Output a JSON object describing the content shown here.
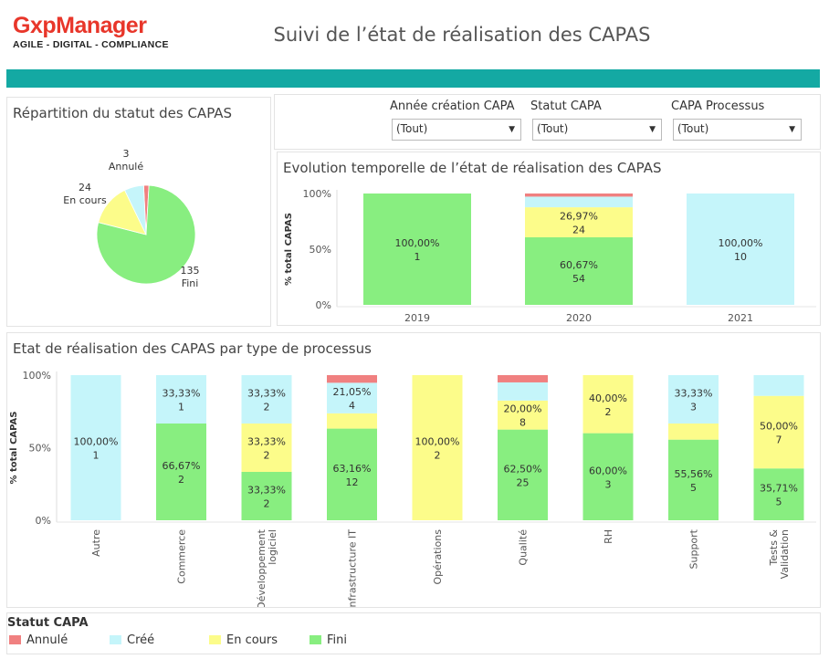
{
  "header": {
    "logo_main": "GxpManager",
    "logo_sub": "AGILE - DIGITAL - COMPLIANCE",
    "title": "Suivi de l’état de réalisation des CAPAS"
  },
  "colors": {
    "teal": "#14a9a3",
    "annule": "#f08080",
    "cree": "#c5f5fa",
    "en_cours": "#fcfc8a",
    "fini": "#88ee80"
  },
  "pie_panel": {
    "title": "Répartition du statut des CAPAS"
  },
  "filters": {
    "items": [
      {
        "label": "Année création CAPA",
        "value": "(Tout)"
      },
      {
        "label": "Statut CAPA",
        "value": "(Tout)"
      },
      {
        "label": "CAPA Processus",
        "value": "(Tout)"
      }
    ],
    "caret": "▼"
  },
  "evolution_panel": {
    "title": "Evolution temporelle de l’état de réalisation des CAPAS",
    "ylabel": "% total CAPAS"
  },
  "process_panel": {
    "title": "Etat de réalisation des CAPAS par type de processus",
    "ylabel": "% total CAPAS"
  },
  "legend": {
    "title": "Statut CAPA",
    "items": [
      {
        "key": "annule",
        "label": "Annulé",
        "color": "#f08080"
      },
      {
        "key": "cree",
        "label": "Créé",
        "color": "#c5f5fa"
      },
      {
        "key": "en_cours",
        "label": "En cours",
        "color": "#fcfc8a"
      },
      {
        "key": "fini",
        "label": "Fini",
        "color": "#88ee80"
      }
    ]
  },
  "chart_data": [
    {
      "type": "pie",
      "slices": [
        {
          "key": "annule",
          "label": "Annulé",
          "value": 3
        },
        {
          "key": "cree",
          "label": "Créé",
          "value": 11
        },
        {
          "key": "en_cours",
          "label": "En cours",
          "value": 24
        },
        {
          "key": "fini",
          "label": "Fini",
          "value": 135
        }
      ],
      "data_labels": [
        {
          "key": "annule",
          "count": "3",
          "name": "Annulé"
        },
        {
          "key": "en_cours",
          "count": "24",
          "name": "En cours"
        },
        {
          "key": "fini",
          "count": "135",
          "name": "Fini"
        }
      ]
    },
    {
      "type": "bar",
      "stacked": true,
      "percent": true,
      "ylabel": "% total CAPAS",
      "yticks": [
        "0%",
        "50%",
        "100%"
      ],
      "ylim": [
        0,
        100
      ],
      "categories": [
        "2019",
        "2020",
        "2021"
      ],
      "stack_order": [
        "fini",
        "en_cours",
        "cree",
        "annule"
      ],
      "bars": [
        {
          "category": "2019",
          "segments": {
            "fini": 100
          },
          "labels": [
            {
              "key": "fini",
              "pct": "100,00%",
              "count": "1"
            }
          ]
        },
        {
          "category": "2020",
          "segments": {
            "fini": 60.67,
            "en_cours": 26.97,
            "cree": 9.55,
            "annule": 2.81
          },
          "labels": [
            {
              "key": "fini",
              "pct": "60,67%",
              "count": "54"
            },
            {
              "key": "en_cours",
              "pct": "26,97%",
              "count": "24"
            }
          ]
        },
        {
          "category": "2021",
          "segments": {
            "cree": 100
          },
          "labels": [
            {
              "key": "cree",
              "pct": "100,00%",
              "count": "10"
            }
          ]
        }
      ]
    },
    {
      "type": "bar",
      "stacked": true,
      "percent": true,
      "ylabel": "% total CAPAS",
      "yticks": [
        "0%",
        "50%",
        "100%"
      ],
      "ylim": [
        0,
        100
      ],
      "stack_order": [
        "fini",
        "en_cours",
        "cree",
        "annule"
      ],
      "categories": [
        [
          "Autre"
        ],
        [
          "Commerce"
        ],
        [
          "Développement",
          "logiciel"
        ],
        [
          "Infrastructure IT"
        ],
        [
          "Opérations"
        ],
        [
          "Qualité"
        ],
        [
          "RH"
        ],
        [
          "Support"
        ],
        [
          "Tests &",
          "Validation"
        ]
      ],
      "bars": [
        {
          "segments": {
            "cree": 100
          },
          "labels": [
            {
              "key": "cree",
              "pct": "100,00%",
              "count": "1"
            }
          ]
        },
        {
          "segments": {
            "fini": 66.67,
            "cree": 33.33
          },
          "labels": [
            {
              "key": "fini",
              "pct": "66,67%",
              "count": "2"
            },
            {
              "key": "cree",
              "pct": "33,33%",
              "count": "1"
            }
          ]
        },
        {
          "segments": {
            "fini": 33.33,
            "en_cours": 33.33,
            "cree": 33.33
          },
          "labels": [
            {
              "key": "fini",
              "pct": "33,33%",
              "count": "2"
            },
            {
              "key": "en_cours",
              "pct": "33,33%",
              "count": "2"
            },
            {
              "key": "cree",
              "pct": "33,33%",
              "count": "2"
            }
          ]
        },
        {
          "segments": {
            "fini": 63.16,
            "en_cours": 10.53,
            "cree": 21.05,
            "annule": 5.26
          },
          "labels": [
            {
              "key": "fini",
              "pct": "63,16%",
              "count": "12"
            },
            {
              "key": "cree",
              "pct": "21,05%",
              "count": "4"
            }
          ]
        },
        {
          "segments": {
            "en_cours": 100
          },
          "labels": [
            {
              "key": "en_cours",
              "pct": "100,00%",
              "count": "2"
            }
          ]
        },
        {
          "segments": {
            "fini": 62.5,
            "en_cours": 20,
            "cree": 12.5,
            "annule": 5
          },
          "labels": [
            {
              "key": "fini",
              "pct": "62,50%",
              "count": "25"
            },
            {
              "key": "en_cours",
              "pct": "20,00%",
              "count": "8"
            }
          ]
        },
        {
          "segments": {
            "fini": 60,
            "en_cours": 40
          },
          "labels": [
            {
              "key": "fini",
              "pct": "60,00%",
              "count": "3"
            },
            {
              "key": "en_cours",
              "pct": "40,00%",
              "count": "2"
            }
          ]
        },
        {
          "segments": {
            "fini": 55.56,
            "en_cours": 11.11,
            "cree": 33.33
          },
          "labels": [
            {
              "key": "fini",
              "pct": "55,56%",
              "count": "5"
            },
            {
              "key": "cree",
              "pct": "33,33%",
              "count": "3"
            }
          ]
        },
        {
          "segments": {
            "fini": 35.71,
            "en_cours": 50,
            "cree": 14.29
          },
          "labels": [
            {
              "key": "fini",
              "pct": "35,71%",
              "count": "5"
            },
            {
              "key": "en_cours",
              "pct": "50,00%",
              "count": "7"
            }
          ]
        }
      ]
    }
  ]
}
